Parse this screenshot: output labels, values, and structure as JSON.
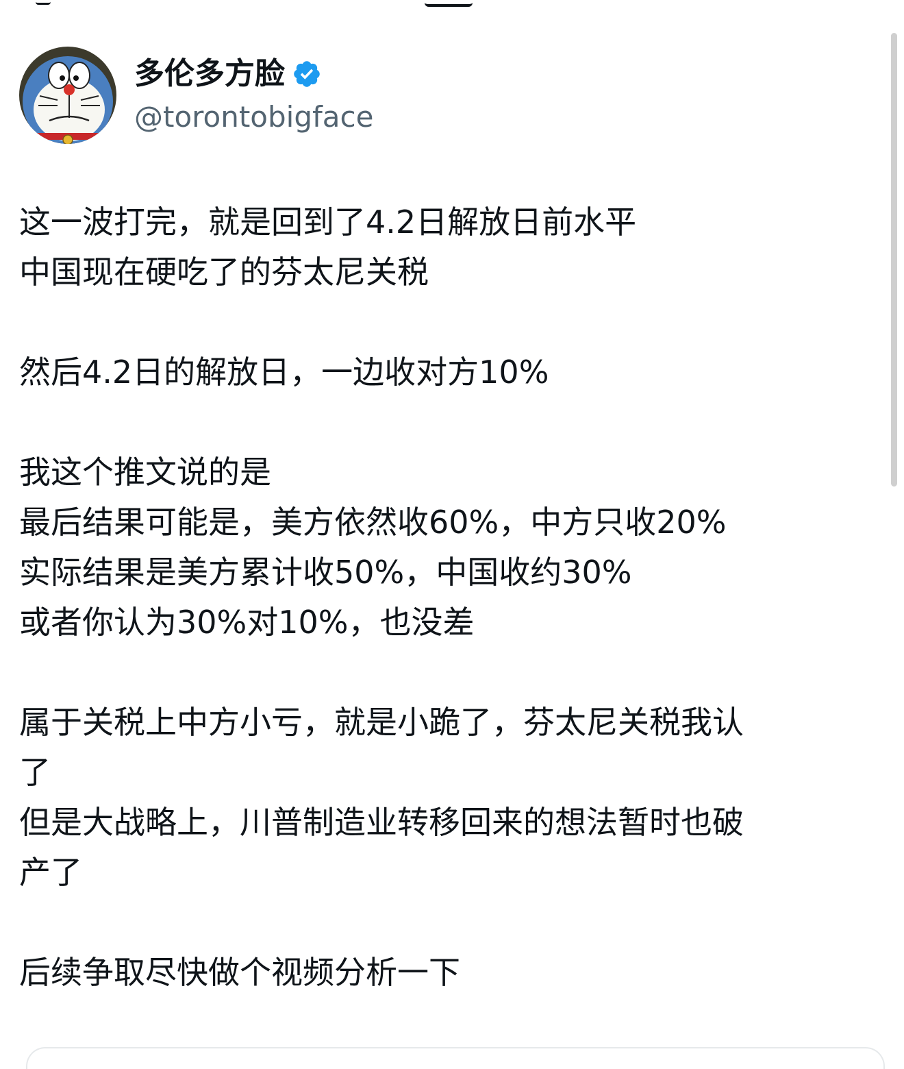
{
  "author": {
    "display_name": "多伦多方脸",
    "handle": "@torontobigface",
    "verified_icon": "verified-badge-icon",
    "avatar_icon": "doraemon-avatar",
    "verified_color": "#1d9bf0"
  },
  "tweet": {
    "lines": [
      "这一波打完，就是回到了4.2日解放日前水平",
      "中国现在硬吃了的芬太尼关税",
      "",
      "然后4.2日的解放日，一边收对方10%",
      "",
      "我这个推文说的是",
      "最后结果可能是，美方依然收60%，中方只收20%",
      "实际结果是美方累计收50%，中国收约30%",
      "或者你认为30%对10%，也没差",
      "",
      "属于关税上中方小亏，就是小跪了，芬太尼关税我认",
      "了",
      "但是大战略上，川普制造业转移回来的想法暂时也破",
      "产了",
      "",
      "后续争取尽快做个视频分析一下"
    ]
  }
}
